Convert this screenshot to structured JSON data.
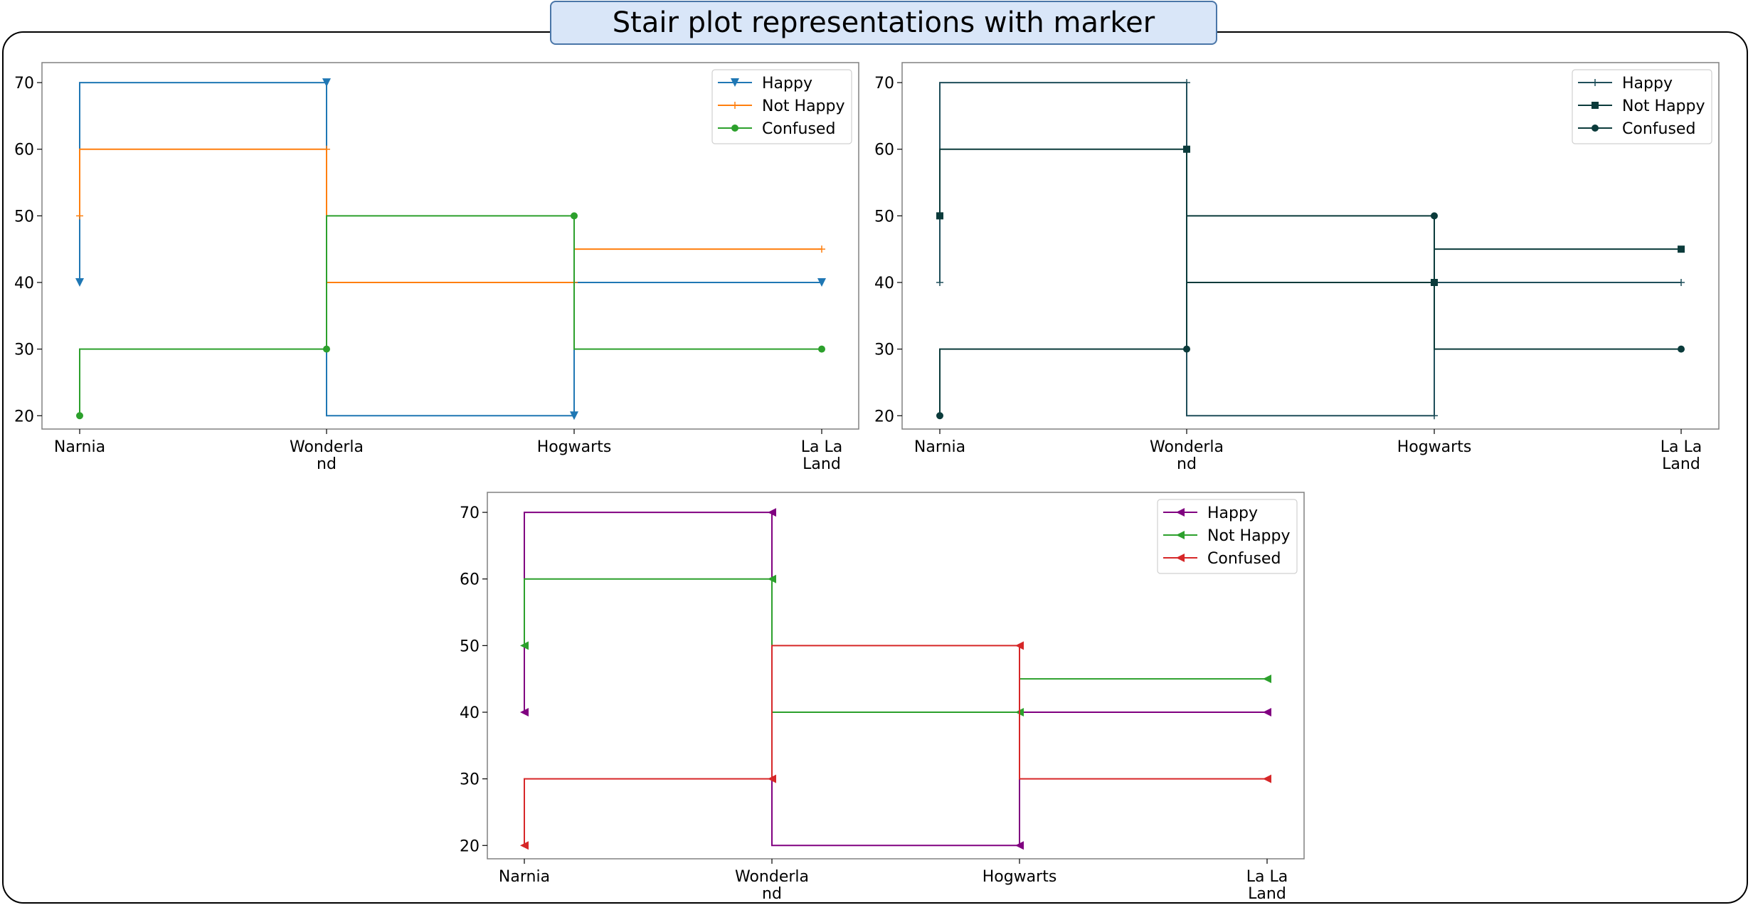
{
  "title": "Stair plot representations with marker",
  "chart_data": [
    {
      "type": "line",
      "drawstyle": "steps-pre",
      "categories": [
        "Narnia",
        "Wonderland",
        "Hogwarts",
        "La La Land"
      ],
      "ylim": [
        18,
        73
      ],
      "yticks": [
        20,
        30,
        40,
        50,
        60,
        70
      ],
      "legend": "top-right",
      "series": [
        {
          "name": "Happy",
          "values": [
            40,
            70,
            20,
            40
          ],
          "color": "#1f77b4",
          "marker": "triangle-down"
        },
        {
          "name": "Not Happy",
          "values": [
            50,
            60,
            40,
            45
          ],
          "color": "#ff7f0e",
          "marker": "plus"
        },
        {
          "name": "Confused",
          "values": [
            20,
            30,
            50,
            30
          ],
          "color": "#2ca02c",
          "marker": "circle"
        }
      ]
    },
    {
      "type": "line",
      "drawstyle": "steps-pre",
      "categories": [
        "Narnia",
        "Wonderland",
        "Hogwarts",
        "La La Land"
      ],
      "ylim": [
        18,
        73
      ],
      "yticks": [
        20,
        30,
        40,
        50,
        60,
        70
      ],
      "legend": "top-right",
      "series": [
        {
          "name": "Happy",
          "values": [
            40,
            70,
            20,
            40
          ],
          "color": "#1f4e5a",
          "marker": "plus"
        },
        {
          "name": "Not Happy",
          "values": [
            50,
            60,
            40,
            45
          ],
          "color": "#0b3b3b",
          "marker": "square"
        },
        {
          "name": "Confused",
          "values": [
            20,
            30,
            50,
            30
          ],
          "color": "#0b3b3b",
          "marker": "circle"
        }
      ]
    },
    {
      "type": "line",
      "drawstyle": "steps-pre",
      "categories": [
        "Narnia",
        "Wonderland",
        "Hogwarts",
        "La La Land"
      ],
      "ylim": [
        18,
        73
      ],
      "yticks": [
        20,
        30,
        40,
        50,
        60,
        70
      ],
      "legend": "top-right",
      "series": [
        {
          "name": "Happy",
          "values": [
            40,
            70,
            20,
            40
          ],
          "color": "#800080",
          "marker": "triangle-left"
        },
        {
          "name": "Not Happy",
          "values": [
            50,
            60,
            40,
            45
          ],
          "color": "#2ca02c",
          "marker": "triangle-left"
        },
        {
          "name": "Confused",
          "values": [
            20,
            30,
            50,
            30
          ],
          "color": "#d62728",
          "marker": "triangle-left"
        }
      ]
    }
  ]
}
